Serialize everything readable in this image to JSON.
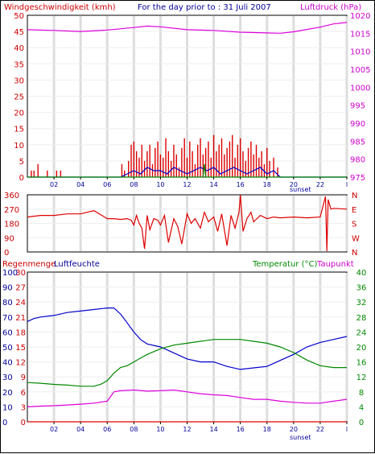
{
  "header": {
    "wind_title": "Windgeschwindigkeit (kmh)",
    "date_title": "For the day prior to : 31 Juli 2007",
    "pressure_title": "Luftdruck (hPa)"
  },
  "lower_header": {
    "rain_title": "Regenmenge",
    "humidity_title": "Luftfeuchte",
    "temp_title": "Temperatur (°C)",
    "dew_title": "Taupunkt"
  },
  "x_axis": {
    "ticks": [
      "02",
      "04",
      "06",
      "08",
      "10",
      "12",
      "14",
      "16",
      "18",
      "20",
      "22",
      "l"
    ],
    "sunset_label": "sunset"
  },
  "chart_data": [
    {
      "type": "line",
      "title": "Windgeschwindigkeit (kmh) / Luftdruck (hPa)",
      "subtitle": "For the day prior to : 31 Juli 2007",
      "x_unit": "hour",
      "xlim": [
        0,
        24
      ],
      "y_left": {
        "label": "Windgeschwindigkeit (kmh)",
        "ylim": [
          0,
          50
        ],
        "ticks": [
          0,
          5,
          10,
          15,
          20,
          25,
          30,
          35,
          40,
          45,
          50
        ]
      },
      "y_right": {
        "label": "Luftdruck (hPa)",
        "ylim": [
          975,
          1020
        ],
        "ticks": [
          975,
          980,
          985,
          990,
          995,
          1000,
          1005,
          1010,
          1015,
          1020
        ]
      },
      "series": [
        {
          "name": "Luftdruck (hPa)",
          "axis": "right",
          "color": "#dd00dd",
          "x": [
            0,
            2,
            4,
            6,
            8,
            9,
            10,
            12,
            14,
            16,
            18,
            19,
            20,
            22,
            23,
            24
          ],
          "y": [
            1016.0,
            1015.8,
            1015.5,
            1015.9,
            1016.6,
            1017.0,
            1016.8,
            1016.0,
            1015.8,
            1015.3,
            1015.1,
            1015.0,
            1015.4,
            1016.7,
            1017.6,
            1018.0
          ]
        },
        {
          "name": "Windgeschwindigkeit (kmh)",
          "axis": "left",
          "color": "#dd0000",
          "style": "bars",
          "x": [
            0.3,
            0.5,
            0.8,
            1.5,
            2.2,
            2.5,
            7.1,
            7.3,
            7.6,
            7.8,
            8.0,
            8.2,
            8.4,
            8.6,
            8.8,
            9.0,
            9.2,
            9.4,
            9.6,
            9.8,
            10.0,
            10.2,
            10.4,
            10.6,
            10.8,
            11.0,
            11.2,
            11.4,
            11.6,
            11.8,
            12.0,
            12.2,
            12.4,
            12.6,
            12.8,
            13.0,
            13.2,
            13.4,
            13.6,
            13.8,
            14.0,
            14.2,
            14.4,
            14.6,
            14.8,
            15.0,
            15.2,
            15.4,
            15.6,
            15.8,
            16.0,
            16.2,
            16.4,
            16.6,
            16.8,
            17.0,
            17.2,
            17.4,
            17.6,
            17.8,
            18.0,
            18.2,
            18.5,
            18.8
          ],
          "y": [
            2,
            2,
            4,
            2,
            2,
            2,
            4,
            2,
            5,
            10,
            11,
            8,
            6,
            10,
            5,
            8,
            10,
            4,
            9,
            11,
            7,
            6,
            12,
            8,
            5,
            10,
            7,
            3,
            9,
            12,
            6,
            11,
            8,
            4,
            10,
            12,
            7,
            9,
            11,
            6,
            13,
            8,
            10,
            12,
            7,
            9,
            11,
            13,
            6,
            10,
            12,
            8,
            5,
            9,
            11,
            7,
            10,
            6,
            8,
            4,
            9,
            5,
            6,
            3
          ]
        },
        {
          "name": "Windgeschwindigkeit Mittel",
          "axis": "left",
          "color": "#0000cc",
          "x": [
            0,
            7.0,
            7.5,
            8.0,
            8.5,
            9.0,
            9.5,
            10.0,
            10.5,
            11.0,
            11.5,
            12.0,
            12.5,
            13.0,
            13.5,
            14.0,
            14.5,
            15.0,
            15.5,
            16.0,
            16.5,
            17.0,
            17.5,
            18.0,
            18.5,
            19.0,
            24
          ],
          "y": [
            0,
            0,
            1,
            2,
            1,
            3,
            2,
            2,
            1,
            3,
            2,
            1,
            2,
            3,
            2,
            3,
            1,
            2,
            3,
            2,
            1,
            2,
            3,
            1,
            2,
            0,
            0
          ]
        },
        {
          "name": "Böen",
          "axis": "left",
          "color": "#008800",
          "x": [
            0,
            13.2,
            13.3,
            13.4,
            24
          ],
          "y": [
            0,
            0,
            4,
            0,
            0
          ]
        }
      ]
    },
    {
      "type": "line",
      "title": "Windrichtung",
      "x_unit": "hour",
      "xlim": [
        0,
        24
      ],
      "ylim": [
        0,
        360
      ],
      "y_ticks": [
        0,
        90,
        180,
        270,
        360
      ],
      "right_labels": [
        "N",
        "W",
        "S",
        "E",
        "N"
      ],
      "series": [
        {
          "name": "Windrichtung",
          "color": "#dd0000",
          "x": [
            0,
            1,
            2,
            3,
            4,
            5,
            6,
            6.5,
            7,
            7.5,
            7.8,
            8.0,
            8.2,
            8.4,
            8.6,
            8.8,
            9.0,
            9.2,
            9.5,
            9.8,
            10.0,
            10.3,
            10.6,
            11.0,
            11.3,
            11.6,
            12.0,
            12.3,
            12.6,
            13.0,
            13.3,
            13.6,
            14.0,
            14.3,
            14.6,
            15.0,
            15.3,
            15.6,
            15.9,
            16.0,
            16.2,
            16.5,
            16.8,
            17.0,
            17.5,
            18.0,
            18.5,
            19.0,
            20.0,
            21.0,
            22.0,
            22.4,
            22.5,
            22.6,
            22.8,
            23.0,
            24.0
          ],
          "y": [
            220,
            230,
            230,
            240,
            240,
            260,
            210,
            210,
            205,
            210,
            200,
            170,
            230,
            180,
            150,
            20,
            230,
            140,
            210,
            200,
            170,
            230,
            60,
            210,
            160,
            50,
            240,
            180,
            210,
            150,
            250,
            190,
            220,
            130,
            240,
            40,
            230,
            150,
            250,
            360,
            130,
            210,
            250,
            190,
            230,
            210,
            220,
            215,
            220,
            215,
            220,
            350,
            5,
            330,
            270,
            275,
            270
          ]
        }
      ]
    },
    {
      "type": "line",
      "title": "Regenmenge / Luftfeuchte / Temperatur (°C) / Taupunkt",
      "x_unit": "hour",
      "xlim": [
        0,
        24
      ],
      "y_left_outer": {
        "label": "Luftfeuchte",
        "ylim": [
          0,
          100
        ],
        "ticks": [
          0,
          10,
          20,
          30,
          40,
          50,
          60,
          70,
          80,
          90,
          100
        ]
      },
      "y_left_inner": {
        "label": "Regenmenge",
        "ylim": [
          0,
          30
        ],
        "ticks": [
          0,
          3,
          6,
          9,
          12,
          15,
          18,
          21,
          24,
          27,
          30
        ]
      },
      "y_right": {
        "label": "Temperatur (°C)",
        "ylim": [
          0,
          40
        ],
        "ticks": [
          0,
          4,
          8,
          12,
          16,
          20,
          24,
          28,
          32,
          36,
          40
        ]
      },
      "series": [
        {
          "name": "Luftfeuchte",
          "axis": "left_outer",
          "color": "#0000cc",
          "x": [
            0,
            0.5,
            1,
            2,
            3,
            4,
            5,
            6,
            6.5,
            7,
            7.5,
            8,
            8.5,
            9,
            10,
            11,
            12,
            13,
            14,
            15,
            16,
            17,
            18,
            19,
            20,
            21,
            22,
            23,
            24
          ],
          "y": [
            67,
            69,
            70,
            71,
            73,
            74,
            75,
            76,
            76,
            72,
            66,
            60,
            55,
            52,
            50,
            46,
            42,
            40,
            40,
            37,
            35,
            36,
            37,
            41,
            45,
            50,
            53,
            55,
            57
          ]
        },
        {
          "name": "Temperatur (°C)",
          "axis": "right",
          "color": "#008800",
          "x": [
            0,
            1,
            2,
            3,
            4,
            5,
            5.5,
            6,
            6.5,
            7,
            7.5,
            8,
            8.5,
            9,
            10,
            11,
            12,
            13,
            14,
            15,
            16,
            17,
            18,
            19,
            20,
            21,
            22,
            23,
            24
          ],
          "y": [
            10.5,
            10.3,
            10.0,
            9.8,
            9.5,
            9.5,
            10.0,
            11.0,
            13.0,
            14.5,
            15.0,
            16.0,
            17.0,
            18.0,
            19.5,
            20.5,
            21.0,
            21.5,
            22.0,
            22.0,
            22.0,
            21.5,
            21.0,
            20.0,
            18.5,
            16.5,
            15.0,
            14.5,
            14.5
          ]
        },
        {
          "name": "Taupunkt",
          "axis": "right",
          "color": "#dd00dd",
          "x": [
            0,
            1,
            2,
            3,
            4,
            5,
            6,
            6.5,
            7,
            8,
            9,
            10,
            11,
            12,
            13,
            14,
            15,
            16,
            17,
            18,
            19,
            20,
            21,
            22,
            23,
            24
          ],
          "y": [
            4.0,
            4.2,
            4.3,
            4.5,
            4.7,
            5.0,
            5.5,
            8.0,
            8.3,
            8.5,
            8.2,
            8.3,
            8.5,
            8.0,
            7.5,
            7.2,
            7.0,
            6.5,
            6.0,
            6.0,
            5.5,
            5.2,
            5.0,
            5.0,
            5.5,
            6.0
          ]
        },
        {
          "name": "Regenmenge",
          "axis": "left_inner",
          "color": "#dd0000",
          "x": [
            0,
            24
          ],
          "y": [
            0,
            0
          ]
        }
      ]
    }
  ]
}
